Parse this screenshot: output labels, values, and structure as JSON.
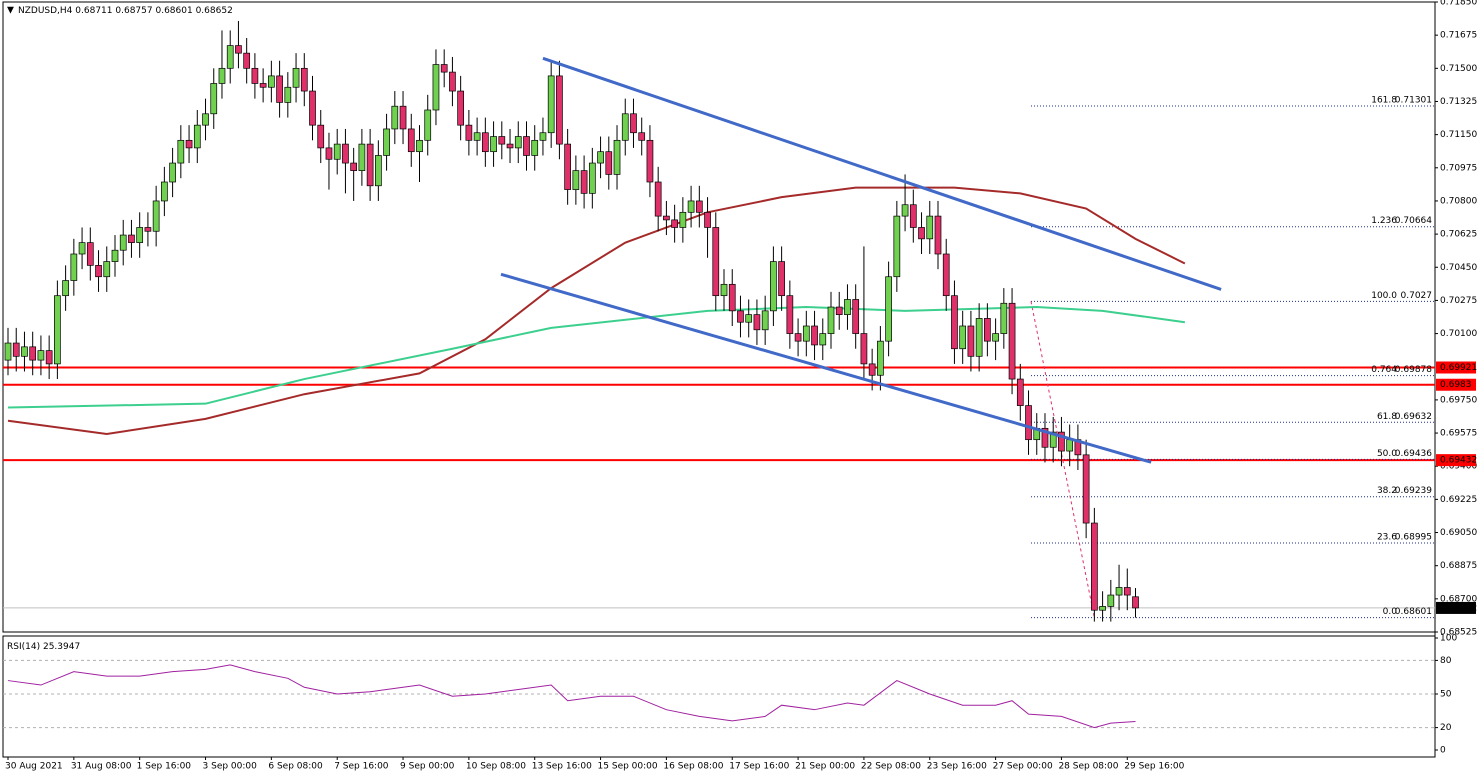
{
  "chart_data": {
    "type": "candlestick",
    "symbol": "NZDUSD,H4",
    "up_color": "#6fd14f",
    "down_color": "#e0306a",
    "ylim": [
      0.68525,
      0.7185
    ],
    "yticks": [
      {
        "value": 0.7185,
        "label": "0.71850"
      },
      {
        "value": 0.71675,
        "label": "0.71675"
      },
      {
        "value": 0.715,
        "label": "0.71500"
      },
      {
        "value": 0.71325,
        "label": "0.71325"
      },
      {
        "value": 0.7115,
        "label": "0.71150"
      },
      {
        "value": 0.70975,
        "label": "0.70975"
      },
      {
        "value": 0.708,
        "label": "0.70800"
      },
      {
        "value": 0.70625,
        "label": "0.70625"
      },
      {
        "value": 0.7045,
        "label": "0.70450"
      },
      {
        "value": 0.70275,
        "label": "0.70275"
      },
      {
        "value": 0.701,
        "label": "0.70100"
      },
      {
        "value": 0.6975,
        "label": "0.69750"
      },
      {
        "value": 0.69575,
        "label": "0.69575"
      },
      {
        "value": 0.694,
        "label": "0.69400"
      },
      {
        "value": 0.69225,
        "label": "0.69225"
      },
      {
        "value": 0.6905,
        "label": "0.69050"
      },
      {
        "value": 0.68875,
        "label": "0.68875"
      },
      {
        "value": 0.687,
        "label": "0.68700"
      },
      {
        "value": 0.68525,
        "label": "0.68525"
      }
    ],
    "xticks": [
      {
        "value": 0,
        "label": "30 Aug 2021"
      },
      {
        "value": 8,
        "label": "31 Aug 08:00"
      },
      {
        "value": 16,
        "label": "1 Sep 16:00"
      },
      {
        "value": 24,
        "label": "3 Sep 00:00"
      },
      {
        "value": 32,
        "label": "6 Sep 08:00"
      },
      {
        "value": 40,
        "label": "7 Sep 16:00"
      },
      {
        "value": 48,
        "label": "9 Sep 00:00"
      },
      {
        "value": 56,
        "label": "10 Sep 08:00"
      },
      {
        "value": 64,
        "label": "13 Sep 16:00"
      },
      {
        "value": 72,
        "label": "15 Sep 00:00"
      },
      {
        "value": 80,
        "label": "16 Sep 08:00"
      },
      {
        "value": 88,
        "label": "17 Sep 16:00"
      },
      {
        "value": 96,
        "label": "21 Sep 00:00"
      },
      {
        "value": 104,
        "label": "22 Sep 08:00"
      },
      {
        "value": 112,
        "label": "23 Sep 16:00"
      },
      {
        "value": 120,
        "label": "27 Sep 00:00"
      },
      {
        "value": 128,
        "label": "28 Sep 08:00"
      },
      {
        "value": 136,
        "label": "29 Sep 16:00"
      }
    ],
    "candles": {
      "open": [
        0.6996,
        0.7005,
        0.6998,
        0.7003,
        0.6996,
        0.7001,
        0.6994,
        0.703,
        0.7038,
        0.7052,
        0.7058,
        0.7046,
        0.704,
        0.7048,
        0.7054,
        0.7062,
        0.7058,
        0.7066,
        0.7064,
        0.708,
        0.709,
        0.71,
        0.7112,
        0.7108,
        0.712,
        0.7126,
        0.7142,
        0.715,
        0.7162,
        0.7158,
        0.715,
        0.7142,
        0.714,
        0.7146,
        0.7132,
        0.714,
        0.715,
        0.7138,
        0.712,
        0.7108,
        0.7102,
        0.711,
        0.71,
        0.7096,
        0.711,
        0.7088,
        0.7104,
        0.7118,
        0.713,
        0.7118,
        0.7106,
        0.7112,
        0.7128,
        0.7152,
        0.7148,
        0.7138,
        0.712,
        0.7112,
        0.7116,
        0.7106,
        0.7114,
        0.711,
        0.7108,
        0.7114,
        0.7104,
        0.7112,
        0.7116,
        0.7146,
        0.711,
        0.7086,
        0.7096,
        0.7084,
        0.71,
        0.7106,
        0.7094,
        0.7112,
        0.7126,
        0.7116,
        0.7112,
        0.709,
        0.7072,
        0.707,
        0.7066,
        0.7074,
        0.708,
        0.7074,
        0.7066,
        0.703,
        0.7036,
        0.7022,
        0.7016,
        0.702,
        0.7012,
        0.7022,
        0.7048,
        0.703,
        0.701,
        0.7006,
        0.7014,
        0.7004,
        0.701,
        0.7024,
        0.702,
        0.7028,
        0.701,
        0.6994,
        0.6988,
        0.7006,
        0.704,
        0.7072,
        0.7078,
        0.7066,
        0.706,
        0.7072,
        0.7052,
        0.703,
        0.7002,
        0.7014,
        0.6998,
        0.7018,
        0.7006,
        0.701,
        0.7026,
        0.6986,
        0.6972,
        0.6954,
        0.696,
        0.695,
        0.6958,
        0.6948,
        0.6954,
        0.6946,
        0.691,
        0.6864,
        0.6866,
        0.6872,
        0.6876,
        0.68711
      ],
      "high": [
        0.7013,
        0.7013,
        0.7011,
        0.7011,
        0.7009,
        0.7009,
        0.7038,
        0.7046,
        0.706,
        0.7066,
        0.7066,
        0.7054,
        0.7056,
        0.7062,
        0.707,
        0.707,
        0.7074,
        0.7074,
        0.7088,
        0.7098,
        0.7108,
        0.712,
        0.712,
        0.7128,
        0.7134,
        0.715,
        0.717,
        0.717,
        0.7175,
        0.7166,
        0.7158,
        0.715,
        0.7154,
        0.7154,
        0.7148,
        0.7158,
        0.7158,
        0.7146,
        0.7128,
        0.7116,
        0.7118,
        0.7118,
        0.7108,
        0.7118,
        0.7118,
        0.7112,
        0.7126,
        0.7138,
        0.7138,
        0.7126,
        0.712,
        0.7136,
        0.716,
        0.716,
        0.7156,
        0.7146,
        0.7128,
        0.7124,
        0.7124,
        0.7122,
        0.7122,
        0.7118,
        0.7122,
        0.7122,
        0.712,
        0.7124,
        0.7154,
        0.7154,
        0.7118,
        0.7104,
        0.7104,
        0.7108,
        0.7114,
        0.7114,
        0.712,
        0.7134,
        0.7134,
        0.7124,
        0.712,
        0.7098,
        0.708,
        0.7078,
        0.7082,
        0.7088,
        0.7088,
        0.7082,
        0.7074,
        0.7044,
        0.7044,
        0.703,
        0.7028,
        0.7028,
        0.703,
        0.7056,
        0.7056,
        0.7038,
        0.7018,
        0.7022,
        0.7022,
        0.7018,
        0.7032,
        0.7032,
        0.7036,
        0.7036,
        0.7056,
        0.7002,
        0.7014,
        0.7048,
        0.708,
        0.7094,
        0.7086,
        0.7074,
        0.708,
        0.708,
        0.706,
        0.7038,
        0.7022,
        0.7022,
        0.7026,
        0.7026,
        0.7018,
        0.7034,
        0.7034,
        0.6994,
        0.698,
        0.6968,
        0.6968,
        0.6966,
        0.6966,
        0.6962,
        0.6962,
        0.6954,
        0.6918,
        0.6874,
        0.688,
        0.6888,
        0.6886,
        0.68757
      ],
      "low": [
        0.6988,
        0.699,
        0.699,
        0.6988,
        0.6988,
        0.6986,
        0.6986,
        0.7022,
        0.703,
        0.7044,
        0.7038,
        0.7032,
        0.7032,
        0.704,
        0.7046,
        0.705,
        0.705,
        0.7056,
        0.7056,
        0.7072,
        0.7082,
        0.7092,
        0.71,
        0.71,
        0.7112,
        0.7118,
        0.7134,
        0.7142,
        0.715,
        0.7142,
        0.7134,
        0.7132,
        0.7132,
        0.7124,
        0.7124,
        0.7132,
        0.713,
        0.7112,
        0.71,
        0.7086,
        0.7094,
        0.7084,
        0.708,
        0.7088,
        0.708,
        0.708,
        0.7096,
        0.711,
        0.711,
        0.7098,
        0.709,
        0.7104,
        0.712,
        0.714,
        0.713,
        0.7112,
        0.7104,
        0.7104,
        0.7098,
        0.7098,
        0.7102,
        0.71,
        0.71,
        0.7096,
        0.7096,
        0.7104,
        0.7108,
        0.7102,
        0.7078,
        0.7078,
        0.7076,
        0.7076,
        0.7092,
        0.7086,
        0.7086,
        0.7104,
        0.7108,
        0.7104,
        0.7082,
        0.7064,
        0.7062,
        0.7058,
        0.7058,
        0.7066,
        0.7066,
        0.705,
        0.7022,
        0.7022,
        0.7014,
        0.7008,
        0.7008,
        0.7004,
        0.7004,
        0.7014,
        0.7022,
        0.7002,
        0.6998,
        0.6998,
        0.6996,
        0.6996,
        0.7002,
        0.7012,
        0.7012,
        0.7002,
        0.6986,
        0.698,
        0.698,
        0.6998,
        0.7032,
        0.7064,
        0.7058,
        0.7052,
        0.7052,
        0.7044,
        0.7022,
        0.6994,
        0.6994,
        0.699,
        0.699,
        0.6998,
        0.6996,
        0.7002,
        0.6978,
        0.6964,
        0.6946,
        0.6946,
        0.6942,
        0.6942,
        0.694,
        0.694,
        0.6938,
        0.6902,
        0.6858,
        0.6858,
        0.6858,
        0.6864,
        0.6864,
        0.68601
      ],
      "close": [
        0.7005,
        0.6998,
        0.7003,
        0.6996,
        0.7001,
        0.6994,
        0.703,
        0.7038,
        0.7052,
        0.7058,
        0.7046,
        0.704,
        0.7048,
        0.7054,
        0.7062,
        0.7058,
        0.7066,
        0.7064,
        0.708,
        0.709,
        0.71,
        0.7112,
        0.7108,
        0.712,
        0.7126,
        0.7142,
        0.715,
        0.7162,
        0.7158,
        0.715,
        0.7142,
        0.714,
        0.7146,
        0.7132,
        0.714,
        0.715,
        0.7138,
        0.712,
        0.7108,
        0.7102,
        0.711,
        0.71,
        0.7096,
        0.711,
        0.7088,
        0.7104,
        0.7118,
        0.713,
        0.7118,
        0.7106,
        0.7112,
        0.7128,
        0.7152,
        0.7148,
        0.7138,
        0.712,
        0.7112,
        0.7116,
        0.7106,
        0.7114,
        0.711,
        0.7108,
        0.7114,
        0.7104,
        0.7112,
        0.7116,
        0.7146,
        0.711,
        0.7086,
        0.7096,
        0.7084,
        0.71,
        0.7106,
        0.7094,
        0.7112,
        0.7126,
        0.7116,
        0.7112,
        0.709,
        0.7072,
        0.707,
        0.7066,
        0.7074,
        0.708,
        0.7074,
        0.7066,
        0.703,
        0.7036,
        0.7022,
        0.7016,
        0.702,
        0.7012,
        0.7022,
        0.7048,
        0.703,
        0.701,
        0.7006,
        0.7014,
        0.7004,
        0.701,
        0.7024,
        0.702,
        0.7028,
        0.701,
        0.6994,
        0.6988,
        0.7006,
        0.704,
        0.7072,
        0.7078,
        0.7066,
        0.706,
        0.7072,
        0.7052,
        0.703,
        0.7002,
        0.7014,
        0.6998,
        0.7018,
        0.7006,
        0.701,
        0.7026,
        0.6986,
        0.6972,
        0.6954,
        0.696,
        0.695,
        0.6958,
        0.6948,
        0.6954,
        0.6946,
        0.691,
        0.6864,
        0.6866,
        0.6872,
        0.6876,
        0.6872,
        0.68652
      ]
    },
    "moving_averages": [
      {
        "color": "#a52a2a",
        "x": [
          0,
          12,
          24,
          36,
          50,
          58,
          66,
          75,
          85,
          94,
          103,
          115,
          123,
          131,
          137,
          143
        ],
        "values": [
          0.6964,
          0.6957,
          0.6965,
          0.6978,
          0.6989,
          0.7007,
          0.7034,
          0.7058,
          0.7074,
          0.7082,
          0.7087,
          0.7087,
          0.7084,
          0.7076,
          0.706,
          0.7047
        ]
      },
      {
        "color": "#3ccf8e",
        "x": [
          0,
          24,
          36,
          54,
          66,
          85,
          97,
          109,
          125,
          133,
          143
        ],
        "values": [
          0.6971,
          0.6973,
          0.6986,
          0.7002,
          0.7013,
          0.7022,
          0.7024,
          0.7022,
          0.7024,
          0.7022,
          0.7016
        ]
      }
    ],
    "trendlines": [
      {
        "color": "#4169c8",
        "x": [
          65,
          147.4
        ],
        "values": [
          0.71553,
          0.70333
        ]
      },
      {
        "color": "#4169c8",
        "x": [
          59.9,
          138.9
        ],
        "values": [
          0.70413,
          0.69421
        ]
      }
    ],
    "levels": [
      {
        "value": 0.69921,
        "color": "#ff0000"
      },
      {
        "value": 0.6983,
        "color": "#ff0000"
      },
      {
        "value": 0.69432,
        "color": "#ff0000"
      }
    ],
    "fibonacci": {
      "color": "#1c2c8c",
      "x": [
        124.3,
        132
      ],
      "levels": [
        {
          "ratio": "161.8",
          "value": 0.71301
        },
        {
          "ratio": "1.236",
          "value": 0.70664
        },
        {
          "ratio": "100.0",
          "value": 0.7027
        },
        {
          "ratio": "0.764",
          "value": 0.69878
        },
        {
          "ratio": "61.8",
          "value": 0.69632
        },
        {
          "ratio": "50.0",
          "value": 0.69436
        },
        {
          "ratio": "38.2",
          "value": 0.69239
        },
        {
          "ratio": "23.6",
          "value": 0.68995
        },
        {
          "ratio": "0.0",
          "value": 0.68601
        }
      ]
    },
    "rsi": {
      "label": "RSI(14)",
      "color": "#a020a0",
      "ylim": [
        0,
        100
      ],
      "yticks": [
        100,
        80,
        50,
        20,
        0
      ],
      "levels": [
        80,
        50,
        20
      ],
      "x": [
        0,
        4,
        8,
        12,
        16,
        20,
        24,
        27,
        30,
        34,
        36,
        40,
        44,
        48,
        50,
        54,
        58,
        62,
        66,
        68,
        72,
        76,
        80,
        84,
        88,
        92,
        94,
        98,
        102,
        104,
        108,
        112,
        116,
        120,
        122,
        124,
        128,
        132,
        134,
        137
      ],
      "values": [
        62,
        58,
        70,
        66,
        66,
        70,
        72,
        76,
        70,
        64,
        56,
        50,
        52,
        56,
        58,
        48,
        50,
        54,
        58,
        44,
        48,
        48,
        36,
        30,
        26,
        30,
        40,
        36,
        42,
        40,
        62,
        50,
        40,
        40,
        44,
        32,
        30,
        20,
        24,
        25.3947
      ]
    }
  }
}
